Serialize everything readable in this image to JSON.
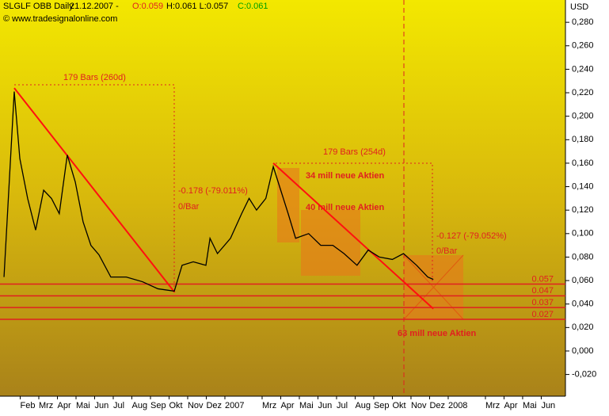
{
  "chart_data": {
    "type": "line",
    "header_symbol": "SLGLF OBB Daily",
    "header_date": "21.12.2007 -",
    "header_open": "O:0.059",
    "header_hl": "H:0.061 L:0.057",
    "header_close": "C:0.061",
    "source": "© www.tradesignalonline.com",
    "y_axis_label": "USD",
    "xlim": [
      0,
      30.3
    ],
    "ylim": [
      -0.0385,
      0.299
    ],
    "xticks": [
      {
        "value": 1,
        "label": "Feb"
      },
      {
        "value": 2,
        "label": "Mrz"
      },
      {
        "value": 3,
        "label": "Apr"
      },
      {
        "value": 4,
        "label": "Mai"
      },
      {
        "value": 5,
        "label": "Jun"
      },
      {
        "value": 6,
        "label": "Jul"
      },
      {
        "value": 7,
        "label": "Aug"
      },
      {
        "value": 8,
        "label": "Sep"
      },
      {
        "value": 9,
        "label": "Okt"
      },
      {
        "value": 10,
        "label": "Nov"
      },
      {
        "value": 11,
        "label": "Dez"
      },
      {
        "value": 12,
        "label": "2007"
      },
      {
        "value": 14,
        "label": "Mrz"
      },
      {
        "value": 15,
        "label": "Apr"
      },
      {
        "value": 16,
        "label": "Mai"
      },
      {
        "value": 17,
        "label": "Jun"
      },
      {
        "value": 18,
        "label": "Jul"
      },
      {
        "value": 19,
        "label": "Aug"
      },
      {
        "value": 20,
        "label": "Sep"
      },
      {
        "value": 21,
        "label": "Okt"
      },
      {
        "value": 22,
        "label": "Nov"
      },
      {
        "value": 23,
        "label": "Dez"
      },
      {
        "value": 24,
        "label": "2008"
      },
      {
        "value": 26,
        "label": "Mrz"
      },
      {
        "value": 27,
        "label": "Apr"
      },
      {
        "value": 28,
        "label": "Mai"
      },
      {
        "value": 29,
        "label": "Jun"
      }
    ],
    "yticks": [
      {
        "value": 0.28,
        "label": "0,280"
      },
      {
        "value": 0.26,
        "label": "0,260"
      },
      {
        "value": 0.24,
        "label": "0,240"
      },
      {
        "value": 0.22,
        "label": "0,220"
      },
      {
        "value": 0.2,
        "label": "0,200"
      },
      {
        "value": 0.18,
        "label": "0,180"
      },
      {
        "value": 0.16,
        "label": "0,160"
      },
      {
        "value": 0.14,
        "label": "0,140"
      },
      {
        "value": 0.12,
        "label": "0,120"
      },
      {
        "value": 0.1,
        "label": "0,100"
      },
      {
        "value": 0.08,
        "label": "0,080"
      },
      {
        "value": 0.06,
        "label": "0,060"
      },
      {
        "value": 0.04,
        "label": "0,040"
      },
      {
        "value": 0.02,
        "label": "0,020"
      },
      {
        "value": 0,
        "label": "0,000"
      },
      {
        "value": -0.02,
        "label": "-0,020"
      }
    ],
    "series": [
      {
        "name": "SLGLF",
        "color": "#000000",
        "x": [
          0.13,
          0.68,
          0.98,
          1.4,
          1.83,
          2.26,
          2.68,
          3.1,
          3.53,
          3.96,
          4.38,
          4.8,
          5.23,
          5.87,
          6.7,
          7.57,
          8.4,
          9.28,
          9.7,
          10.3,
          10.98,
          11.2,
          11.6,
          12.3,
          12.9,
          13.3,
          13.7,
          14.2,
          14.6,
          15.0,
          15.4,
          15.8,
          16.5,
          17.15,
          17.8,
          18.4,
          19.1,
          19.7,
          20.3,
          21.0,
          21.6,
          22.3,
          22.9,
          23.2
        ],
        "values": [
          0.063,
          0.221,
          0.164,
          0.13,
          0.103,
          0.137,
          0.13,
          0.117,
          0.167,
          0.144,
          0.11,
          0.09,
          0.082,
          0.063,
          0.063,
          0.059,
          0.053,
          0.051,
          0.073,
          0.076,
          0.073,
          0.096,
          0.083,
          0.096,
          0.117,
          0.13,
          0.12,
          0.13,
          0.157,
          0.137,
          0.117,
          0.096,
          0.1,
          0.09,
          0.09,
          0.083,
          0.073,
          0.086,
          0.08,
          0.078,
          0.083,
          0.073,
          0.063,
          0.061
        ]
      }
    ],
    "trendlines": [
      {
        "x": [
          0.68,
          9.3
        ],
        "y": [
          0.224,
          0.05
        ]
      },
      {
        "x": [
          14.6,
          23.2
        ],
        "y": [
          0.16,
          0.036
        ]
      }
    ],
    "levels": [
      0.057,
      0.047,
      0.037,
      0.027
    ],
    "annotations": {
      "bars1": "179 Bars (260d)",
      "change1": "-0.178 (-79.011%)",
      "perbar1": "0/Bar",
      "bars2": "179 Bars (254d)",
      "change2": "-0.127 (-79.052%)",
      "perbar2": "0/Bar",
      "shares1": "34 mill neue Aktien",
      "shares2": "40 mill neue Aktien",
      "shares3": "63 mill neue Aktien"
    }
  }
}
